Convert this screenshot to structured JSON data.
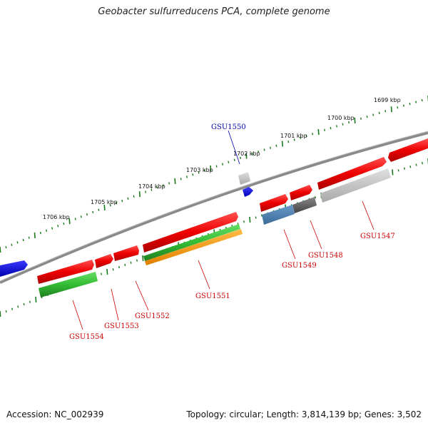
{
  "title": "Geobacter sulfurreducens PCA, complete genome",
  "footer": {
    "accession": "Accession: NC_002939",
    "topology": "Topology: circular; Length: 3,814,139 bp; Genes: 3,502"
  },
  "colors": {
    "backbone": "#808080",
    "ticks": "#1a7a1a",
    "label_red": "#cc0000",
    "label_blue": "#0000aa"
  },
  "scale_labels": [
    "1699 kbp",
    "1700 kbp",
    "1701 kbp",
    "1702 kbp",
    "1703 kbp",
    "1704 kbp",
    "1705 kbp",
    "1706 kbp"
  ],
  "gene_labels": [
    {
      "text": "GSU1550",
      "color": "#0000aa"
    },
    {
      "text": "GSU1547",
      "color": "#cc0000"
    },
    {
      "text": "GSU1548",
      "color": "#cc0000"
    },
    {
      "text": "GSU1549",
      "color": "#cc0000"
    },
    {
      "text": "GSU1551",
      "color": "#cc0000"
    },
    {
      "text": "GSU1552",
      "color": "#cc0000"
    },
    {
      "text": "GSU1553",
      "color": "#cc0000"
    },
    {
      "text": "GSU1554",
      "color": "#cc0000"
    }
  ]
}
